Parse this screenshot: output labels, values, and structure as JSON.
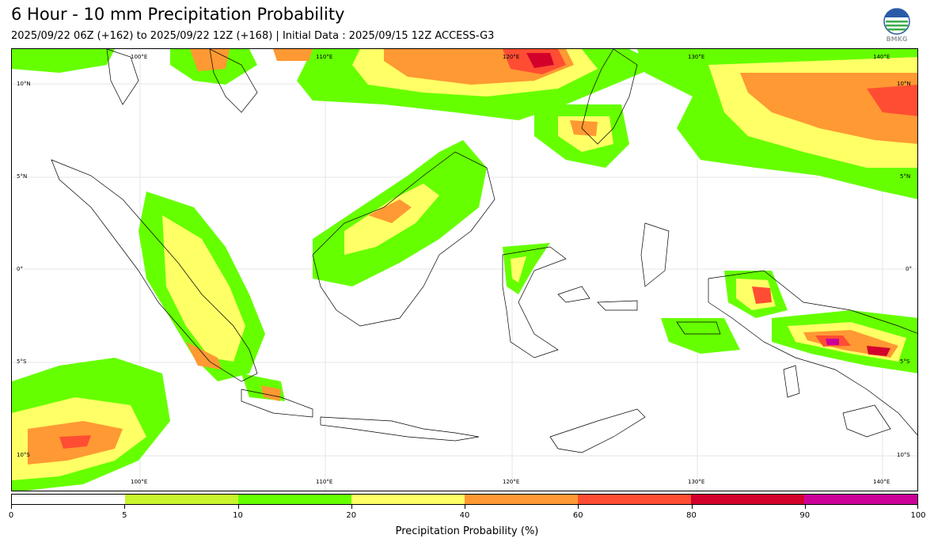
{
  "header": {
    "title": "6 Hour - 10 mm Precipitation Probability",
    "subtitle": "2025/09/22 06Z (+162) to 2025/09/22 12Z (+168) | Initial Data : 2025/09/15 12Z ACCESS-G3"
  },
  "logo": {
    "text": "BMKG",
    "icon": "bmkg-logo-icon"
  },
  "map": {
    "lon_labels_top": [
      "100°E",
      "110°E",
      "120°E",
      "130°E",
      "140°E"
    ],
    "lon_labels_bottom": [
      "100°E",
      "110°E",
      "120°E",
      "130°E",
      "140°E"
    ],
    "lat_labels_left": [
      "10°N",
      "5°N",
      "0°",
      "5°S",
      "10°S"
    ],
    "lat_labels_right": [
      "10°N",
      "5°N",
      "0°",
      "5°S",
      "10°S"
    ],
    "land_line_color": "#000000",
    "grid_color": "#dddddd"
  },
  "colorbar": {
    "label": "Precipitation Probability (%)",
    "bins": [
      {
        "from": 0,
        "to": 5,
        "color": "#ffffff"
      },
      {
        "from": 5,
        "to": 10,
        "color": "#c8f52d"
      },
      {
        "from": 10,
        "to": 20,
        "color": "#66ff00"
      },
      {
        "from": 20,
        "to": 40,
        "color": "#ffff66"
      },
      {
        "from": 40,
        "to": 60,
        "color": "#ff9933"
      },
      {
        "from": 60,
        "to": 80,
        "color": "#ff4d33"
      },
      {
        "from": 80,
        "to": 90,
        "color": "#d4002c"
      },
      {
        "from": 90,
        "to": 100,
        "color": "#cc0099"
      }
    ],
    "ticks": [
      "0",
      "5",
      "10",
      "20",
      "40",
      "60",
      "80",
      "90",
      "100"
    ]
  }
}
